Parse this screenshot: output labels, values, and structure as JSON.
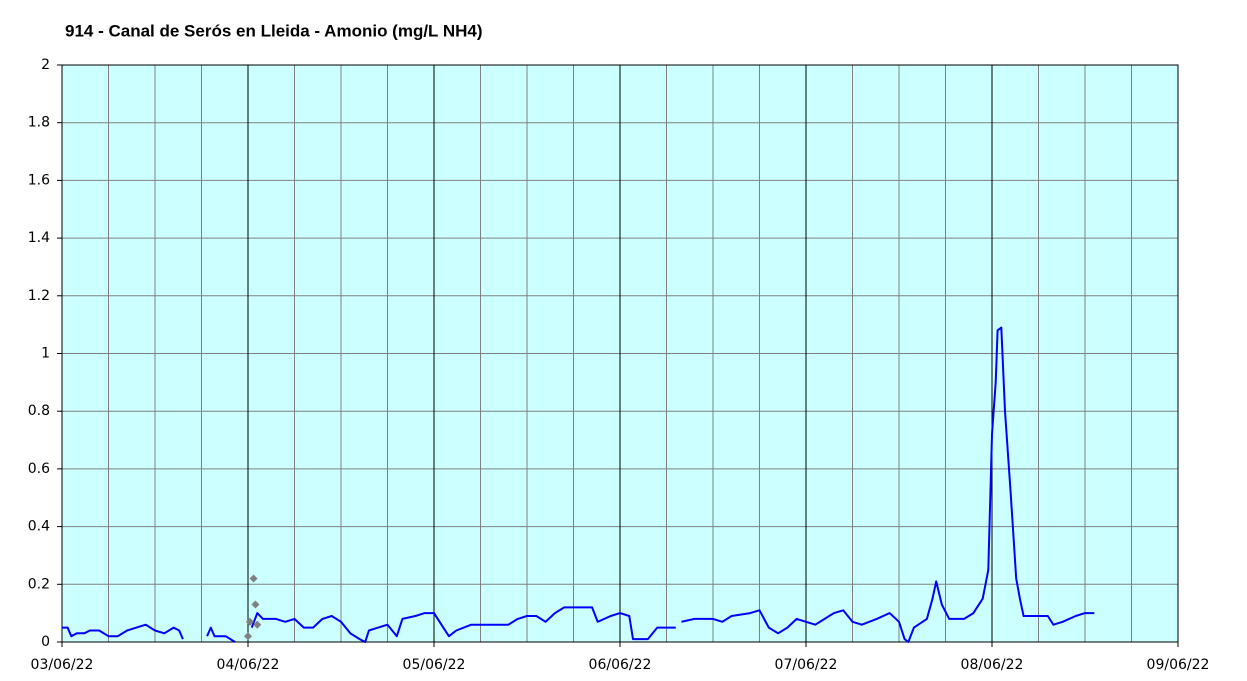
{
  "chart_data": {
    "type": "line",
    "title": "914 - Canal de Serós en Lleida - Amonio (mg/L NH4)",
    "xlim": [
      3,
      9
    ],
    "xticks": [
      {
        "value": 3,
        "label": "03/06/22"
      },
      {
        "value": 4,
        "label": "04/06/22"
      },
      {
        "value": 5,
        "label": "05/06/22"
      },
      {
        "value": 6,
        "label": "06/06/22"
      },
      {
        "value": 7,
        "label": "07/06/22"
      },
      {
        "value": 8,
        "label": "08/06/22"
      },
      {
        "value": 9,
        "label": "09/06/22"
      }
    ],
    "x_minor_divisions": 4,
    "ylim": [
      0,
      2
    ],
    "yticks": [
      0,
      0.2,
      0.4,
      0.6,
      0.8,
      1,
      1.2,
      1.4,
      1.6,
      1.8,
      2
    ],
    "grid": true,
    "background": "#ccffff",
    "series": [
      {
        "color": "#0000ff",
        "style": "line",
        "x": [
          3.0,
          3.03,
          3.05,
          3.08,
          3.12,
          3.15,
          3.2,
          3.25,
          3.3,
          3.35,
          3.4,
          3.45,
          3.5,
          3.55,
          3.6,
          3.63,
          3.65,
          3.7,
          3.78,
          3.8,
          3.82,
          3.88,
          3.93,
          3.98,
          4.02,
          4.05,
          4.08,
          4.15,
          4.2,
          4.25,
          4.3,
          4.35,
          4.4,
          4.45,
          4.5,
          4.55,
          4.6,
          4.63,
          4.65,
          4.7,
          4.75,
          4.8,
          4.83,
          4.9,
          4.95,
          5.0,
          5.05,
          5.08,
          5.12,
          5.2,
          5.3,
          5.4,
          5.45,
          5.5,
          5.55,
          5.6,
          5.65,
          5.7,
          5.8,
          5.85,
          5.88,
          5.95,
          6.0,
          6.05,
          6.07,
          6.15,
          6.2,
          6.3,
          6.31,
          6.33,
          6.4,
          6.5,
          6.55,
          6.6,
          6.7,
          6.75,
          6.8,
          6.85,
          6.9,
          6.95,
          7.0,
          7.05,
          7.1,
          7.15,
          7.2,
          7.25,
          7.3,
          7.38,
          7.45,
          7.5,
          7.53,
          7.55,
          7.58,
          7.65,
          7.68,
          7.7,
          7.73,
          7.77,
          7.85,
          7.9,
          7.95,
          7.98,
          8.0,
          8.02,
          8.03,
          8.05,
          8.07,
          8.1,
          8.13,
          8.15,
          8.17,
          8.3,
          8.33,
          8.38,
          8.45,
          8.5,
          8.55
        ],
        "values": [
          0.05,
          0.05,
          0.02,
          0.03,
          0.03,
          0.04,
          0.04,
          0.02,
          0.02,
          0.04,
          0.05,
          0.06,
          0.04,
          0.03,
          0.05,
          0.04,
          0.01,
          null,
          0.02,
          0.05,
          0.02,
          0.02,
          0.0,
          null,
          0.05,
          0.1,
          0.08,
          0.08,
          0.07,
          0.08,
          0.05,
          0.05,
          0.08,
          0.09,
          0.07,
          0.03,
          0.01,
          0.0,
          0.04,
          0.05,
          0.06,
          0.02,
          0.08,
          0.09,
          0.1,
          0.1,
          0.05,
          0.02,
          0.04,
          0.06,
          0.06,
          0.06,
          0.08,
          0.09,
          0.09,
          0.07,
          0.1,
          0.12,
          0.12,
          0.12,
          0.07,
          0.09,
          0.1,
          0.09,
          0.01,
          0.01,
          0.05,
          0.05,
          null,
          0.07,
          0.08,
          0.08,
          0.07,
          0.09,
          0.1,
          0.11,
          0.05,
          0.03,
          0.05,
          0.08,
          0.07,
          0.06,
          0.08,
          0.1,
          0.11,
          0.07,
          0.06,
          0.08,
          0.1,
          0.07,
          0.01,
          0.0,
          0.05,
          0.08,
          0.15,
          0.21,
          0.13,
          0.08,
          0.08,
          0.1,
          0.15,
          0.25,
          0.72,
          0.9,
          1.08,
          1.09,
          0.8,
          0.52,
          0.22,
          0.15,
          0.09,
          0.09,
          0.06,
          0.07,
          0.09,
          0.1,
          0.1
        ]
      },
      {
        "color": "#808080",
        "style": "marker",
        "x": [
          4.0,
          4.01,
          4.03,
          4.04,
          4.05
        ],
        "values": [
          0.02,
          0.07,
          0.22,
          0.13,
          0.06
        ]
      }
    ]
  }
}
